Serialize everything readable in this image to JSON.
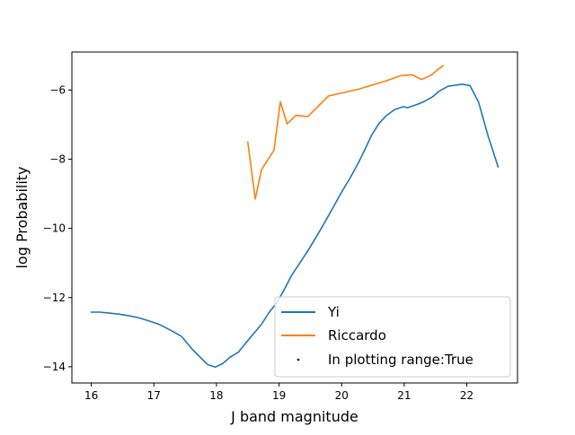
{
  "chart_data": {
    "type": "line",
    "title": "",
    "xlabel": "J band magnitude",
    "ylabel": "log Probability",
    "xlim": [
      15.69,
      22.81
    ],
    "ylim": [
      -14.47,
      -4.9
    ],
    "xticks": [
      16,
      17,
      18,
      19,
      20,
      21,
      22
    ],
    "yticks": [
      -14,
      -12,
      -10,
      -8,
      -6
    ],
    "xtick_labels": [
      "16",
      "17",
      "18",
      "19",
      "20",
      "21",
      "22"
    ],
    "ytick_labels": [
      "−14",
      "−12",
      "−10",
      "−8",
      "−6"
    ],
    "grid": false,
    "legend_position": "lower right",
    "legend": [
      {
        "label": "Yi",
        "kind": "line",
        "color": "#1f77b4"
      },
      {
        "label": "Riccardo",
        "kind": "line",
        "color": "#ff7f0e"
      },
      {
        "label": "In plotting range:True",
        "kind": "point",
        "color": "#000000"
      }
    ],
    "series": [
      {
        "name": "Yi",
        "color": "#1f77b4",
        "x": [
          16.0,
          16.13,
          16.29,
          16.45,
          16.61,
          16.77,
          16.93,
          17.09,
          17.25,
          17.44,
          17.6,
          17.75,
          17.86,
          17.98,
          18.1,
          18.22,
          18.35,
          18.47,
          18.6,
          18.72,
          18.83,
          18.96,
          19.08,
          19.2,
          19.32,
          19.46,
          19.59,
          19.72,
          19.86,
          19.99,
          20.13,
          20.26,
          20.38,
          20.48,
          20.6,
          20.72,
          20.85,
          20.99,
          21.05,
          21.2,
          21.32,
          21.45,
          21.56,
          21.7,
          21.82,
          21.93,
          22.05,
          22.19,
          22.34,
          22.5
        ],
        "y": [
          -12.42,
          -12.42,
          -12.45,
          -12.48,
          -12.53,
          -12.59,
          -12.68,
          -12.78,
          -12.93,
          -13.12,
          -13.47,
          -13.74,
          -13.94,
          -14.01,
          -13.91,
          -13.72,
          -13.58,
          -13.31,
          -13.03,
          -12.77,
          -12.46,
          -12.16,
          -11.78,
          -11.36,
          -11.03,
          -10.65,
          -10.26,
          -9.86,
          -9.41,
          -8.98,
          -8.56,
          -8.13,
          -7.69,
          -7.3,
          -6.96,
          -6.73,
          -6.56,
          -6.48,
          -6.51,
          -6.42,
          -6.33,
          -6.2,
          -6.03,
          -5.89,
          -5.86,
          -5.83,
          -5.87,
          -6.36,
          -7.33,
          -8.22
        ]
      },
      {
        "name": "Riccardo",
        "color": "#ff7f0e",
        "x": [
          18.5,
          18.62,
          18.72,
          18.92,
          19.02,
          19.13,
          19.27,
          19.46,
          19.79,
          20.26,
          20.7,
          20.95,
          21.12,
          21.28,
          21.43,
          21.55,
          21.62
        ],
        "y": [
          -7.5,
          -9.15,
          -8.3,
          -7.74,
          -6.34,
          -6.98,
          -6.73,
          -6.77,
          -6.17,
          -5.98,
          -5.74,
          -5.58,
          -5.56,
          -5.69,
          -5.57,
          -5.39,
          -5.3
        ]
      }
    ]
  }
}
